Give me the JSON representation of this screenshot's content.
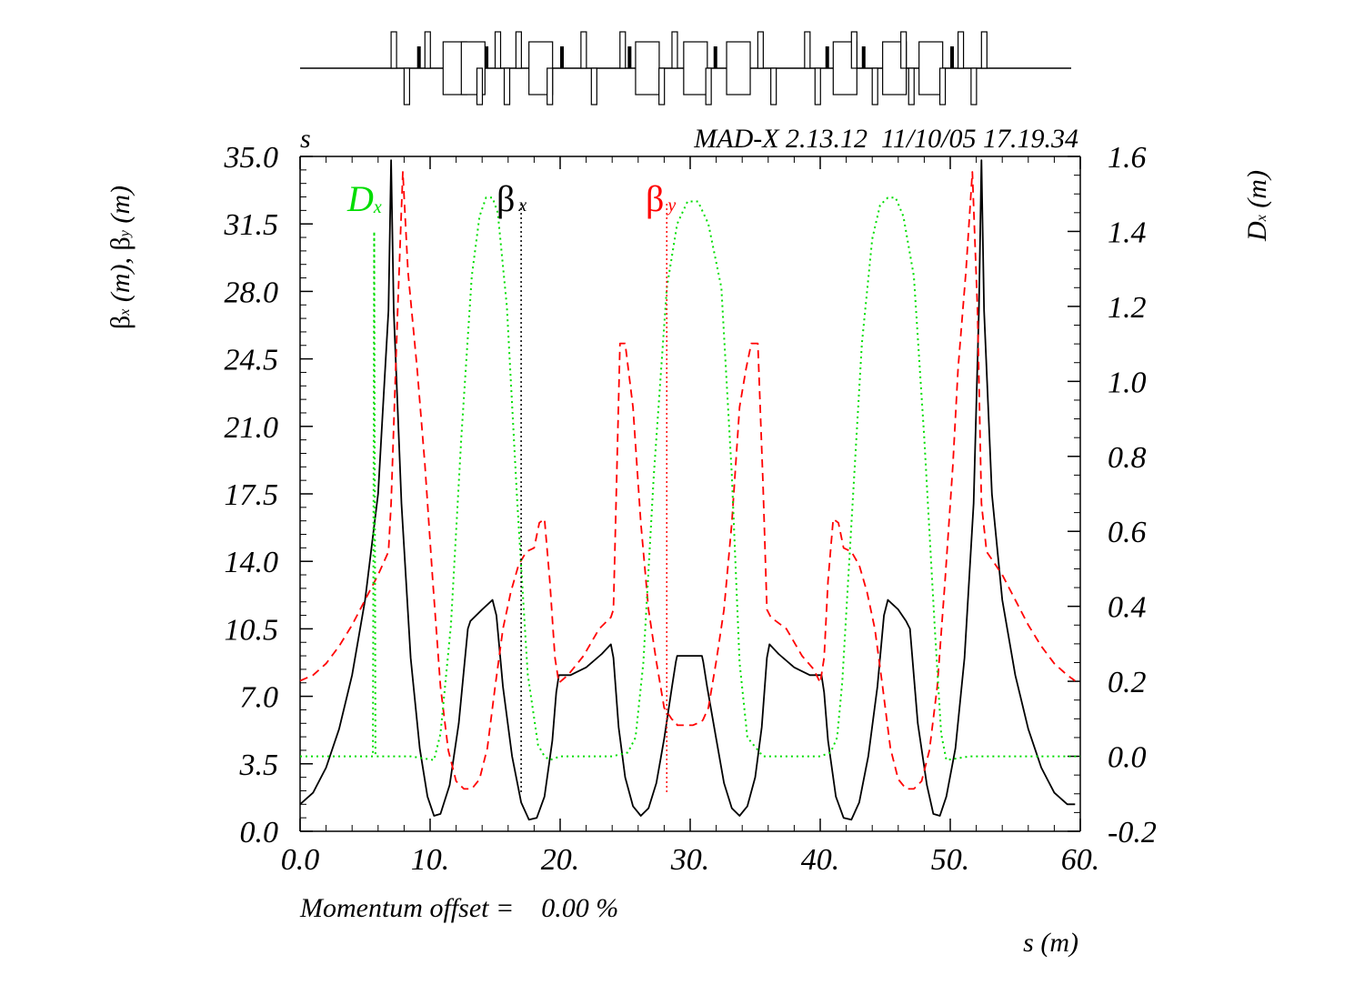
{
  "header": {
    "corner_label": "s",
    "program_stamp": "MAD-X 2.13.12  11/10/05 17.19.34"
  },
  "footer": {
    "momentum_offset": "Momentum offset =    0.00 %"
  },
  "axes": {
    "xlabel": "s (m)",
    "ylabel_left": {
      "b1": "β",
      "s1": "x",
      "m1": " (m), ",
      "b2": "β",
      "s2": "y",
      "m2": " (m)"
    },
    "ylabel_right": {
      "b": "D",
      "s": "x",
      "m": " (m)"
    },
    "x_ticks": [
      "0.0",
      "10.",
      "20.",
      "30.",
      "40.",
      "50.",
      "60."
    ],
    "y_left_ticks": [
      "0.0",
      "3.5",
      "7.0",
      "10.5",
      "14.0",
      "17.5",
      "21.0",
      "24.5",
      "28.0",
      "31.5",
      "35.0"
    ],
    "y_right_ticks": [
      "-0.2",
      "0.0",
      "0.2",
      "0.4",
      "0.6",
      "0.8",
      "1.0",
      "1.2",
      "1.4",
      "1.6"
    ]
  },
  "legend": {
    "dx": {
      "main": "D",
      "sub": "x",
      "color": "#00dd00"
    },
    "bx": {
      "main": "β",
      "sub": "x",
      "color": "#000000"
    },
    "by": {
      "main": "β",
      "sub": "y",
      "color": "#ff0000"
    }
  },
  "chart_data": {
    "type": "line",
    "xlim": [
      0,
      60
    ],
    "ylim_left": [
      0,
      35
    ],
    "ylim_right": [
      -0.2,
      1.6
    ],
    "grid": false,
    "legend_placement": "top, inside plot",
    "series": [
      {
        "name": "βx",
        "axis": "left",
        "color": "#000000",
        "style": "solid",
        "x": [
          0,
          1,
          2,
          3,
          4,
          5,
          6,
          6.8,
          7.0,
          7.2,
          7.8,
          8.5,
          9.2,
          9.8,
          10.3,
          10.8,
          11.5,
          12.2,
          12.9,
          13.1,
          14.0,
          14.8,
          15.1,
          15.6,
          16.3,
          17.0,
          17.6,
          18.2,
          18.8,
          19.4,
          19.7,
          19.9,
          20.8,
          22.0,
          23.2,
          23.9,
          24.1,
          24.5,
          25.0,
          25.6,
          26.2,
          26.8,
          27.4,
          28.0,
          28.6,
          28.9,
          29.0,
          30.2,
          30.9,
          31.0,
          31.3,
          32.0,
          32.6,
          33.2,
          33.8,
          34.4,
          35.0,
          35.5,
          35.9,
          36.1,
          36.8,
          38.0,
          39.2,
          40.1,
          40.3,
          40.6,
          41.2,
          41.8,
          42.4,
          43.0,
          43.7,
          44.4,
          44.9,
          45.2,
          46.0,
          46.6,
          46.9,
          47.5,
          48.2,
          48.7,
          49.2,
          49.7,
          50.4,
          51.1,
          51.8,
          52.2,
          52.4,
          52.6,
          53.2,
          54.0,
          55.0,
          56.0,
          57.0,
          58.0,
          59.0,
          59.6
        ],
        "values": [
          1.4,
          2.0,
          3.3,
          5.3,
          8.1,
          12.0,
          17.5,
          27.0,
          34.8,
          27.0,
          17.0,
          9.0,
          4.3,
          1.8,
          0.8,
          0.9,
          2.4,
          5.6,
          10.5,
          10.9,
          11.5,
          12.0,
          11.2,
          7.5,
          3.9,
          1.5,
          0.6,
          0.7,
          1.8,
          4.7,
          7.2,
          8.1,
          8.1,
          8.5,
          9.2,
          9.7,
          9.0,
          5.4,
          2.8,
          1.3,
          0.8,
          1.2,
          2.5,
          4.8,
          7.5,
          8.8,
          9.1,
          9.1,
          9.1,
          8.8,
          7.5,
          4.8,
          2.5,
          1.2,
          0.8,
          1.3,
          2.8,
          5.4,
          9.0,
          9.7,
          9.2,
          8.5,
          8.1,
          8.1,
          7.2,
          4.7,
          1.8,
          0.7,
          0.6,
          1.5,
          3.9,
          7.5,
          11.2,
          12.0,
          11.5,
          10.9,
          10.5,
          5.6,
          2.4,
          0.9,
          0.8,
          1.8,
          4.3,
          9.0,
          17.0,
          27.0,
          34.8,
          27.0,
          17.5,
          12.0,
          8.1,
          5.3,
          3.3,
          2.0,
          1.4,
          1.4
        ]
      },
      {
        "name": "βy",
        "axis": "left",
        "color": "#ff0000",
        "style": "dashed",
        "x": [
          0,
          1,
          2,
          3,
          4,
          5,
          6,
          6.8,
          7.0,
          7.5,
          7.9,
          8.3,
          9.0,
          9.6,
          10.2,
          10.8,
          11.4,
          12.0,
          12.6,
          13.2,
          13.8,
          14.4,
          15.0,
          15.6,
          16.2,
          16.8,
          17.4,
          18.0,
          18.4,
          18.8,
          19.2,
          19.6,
          19.9,
          20.6,
          21.8,
          23.0,
          23.9,
          24.1,
          24.6,
          25.0,
          25.6,
          26.2,
          26.8,
          27.4,
          28.0,
          28.6,
          28.9,
          29.0,
          30.2,
          30.9,
          31.0,
          31.4,
          32.0,
          32.6,
          33.2,
          33.8,
          34.3,
          34.7,
          35.2,
          35.6,
          35.9,
          36.2,
          37.4,
          38.6,
          39.5,
          40.0,
          40.3,
          40.6,
          41.0,
          41.4,
          41.8,
          42.4,
          43.0,
          43.6,
          44.2,
          44.8,
          45.4,
          46.0,
          46.6,
          47.2,
          47.8,
          48.4,
          49.0,
          49.6,
          50.2,
          50.6,
          51.2,
          51.7,
          52.1,
          52.4,
          52.8,
          54.0,
          55.0,
          56.0,
          57.0,
          58.0,
          59.0,
          59.6
        ],
        "values": [
          7.8,
          8.1,
          8.7,
          9.6,
          10.7,
          12.0,
          13.3,
          14.5,
          17.0,
          27.0,
          34.2,
          29.0,
          24.0,
          19.0,
          13.0,
          7.5,
          4.2,
          2.6,
          2.2,
          2.2,
          2.7,
          4.3,
          7.5,
          10.5,
          12.4,
          13.8,
          14.5,
          14.7,
          16.0,
          16.2,
          13.0,
          9.0,
          7.7,
          8.1,
          9.1,
          10.5,
          11.1,
          11.5,
          25.3,
          25.3,
          22.0,
          16.0,
          11.5,
          8.8,
          6.4,
          5.8,
          5.7,
          5.5,
          5.5,
          5.7,
          5.8,
          6.4,
          8.8,
          11.5,
          16.0,
          22.0,
          24.0,
          25.3,
          25.3,
          18.0,
          11.5,
          11.1,
          10.5,
          9.1,
          8.4,
          7.7,
          9.0,
          13.0,
          16.2,
          16.0,
          14.7,
          14.5,
          13.8,
          12.4,
          10.5,
          7.5,
          4.3,
          2.7,
          2.2,
          2.2,
          2.6,
          4.2,
          7.5,
          13.0,
          19.0,
          24.0,
          29.0,
          34.2,
          27.0,
          17.0,
          14.5,
          13.3,
          12.0,
          10.7,
          9.6,
          8.7,
          8.1,
          7.8
        ]
      },
      {
        "name": "Dx",
        "axis": "right",
        "color": "#00dd00",
        "style": "dotted",
        "x": [
          0,
          5.0,
          5.6,
          5.7,
          5.8,
          6.2,
          6.6,
          7.0,
          8.5,
          10.3,
          10.8,
          11.6,
          12.4,
          13.2,
          13.8,
          14.3,
          14.8,
          15.2,
          15.9,
          16.7,
          17.5,
          18.3,
          18.8,
          19.2,
          20.0,
          24.0,
          25.2,
          25.8,
          26.4,
          27.2,
          28.2,
          29.0,
          29.8,
          30.6,
          31.4,
          32.4,
          33.2,
          33.8,
          34.4,
          35.6,
          39.0,
          40.0,
          40.8,
          41.3,
          41.7,
          42.4,
          43.2,
          44.0,
          44.6,
          45.2,
          45.8,
          46.4,
          47.2,
          48.0,
          48.8,
          49.3,
          49.7,
          51.5,
          55.0,
          60.0
        ],
        "values": [
          0.0,
          0.0,
          0.0,
          1.4,
          0.0,
          0.0,
          0.0,
          0.0,
          0.0,
          -0.01,
          0.06,
          0.35,
          0.85,
          1.28,
          1.44,
          1.49,
          1.49,
          1.45,
          1.2,
          0.68,
          0.22,
          0.03,
          0.0,
          -0.01,
          0.0,
          0.0,
          0.01,
          0.05,
          0.25,
          0.75,
          1.25,
          1.42,
          1.48,
          1.48,
          1.42,
          1.25,
          0.75,
          0.25,
          0.05,
          0.0,
          0.0,
          0.0,
          0.01,
          0.05,
          0.2,
          0.62,
          1.1,
          1.38,
          1.47,
          1.49,
          1.49,
          1.44,
          1.28,
          0.85,
          0.35,
          0.06,
          -0.01,
          0.0,
          0.0,
          0.0
        ]
      }
    ],
    "markers": [
      {
        "x": 17.0,
        "color": "#000000",
        "label": "βx marker"
      },
      {
        "x": 28.2,
        "color": "#ff0000",
        "label": "βy marker"
      }
    ]
  },
  "lattice": {
    "elements": [
      {
        "s": 7.0,
        "type": "quad-up"
      },
      {
        "s": 8.0,
        "type": "quad-down"
      },
      {
        "s": 9.0,
        "type": "sext"
      },
      {
        "s": 9.6,
        "type": "quad-up"
      },
      {
        "s": 11.0,
        "type": "dipole"
      },
      {
        "s": 12.4,
        "type": "dipole"
      },
      {
        "s": 13.6,
        "type": "quad-down"
      },
      {
        "s": 14.2,
        "type": "sext"
      },
      {
        "s": 15.0,
        "type": "quad-up"
      },
      {
        "s": 15.7,
        "type": "quad-down"
      },
      {
        "s": 16.6,
        "type": "quad-up"
      },
      {
        "s": 17.6,
        "type": "dipole"
      },
      {
        "s": 19.0,
        "type": "quad-down"
      },
      {
        "s": 20.0,
        "type": "sext"
      },
      {
        "s": 21.6,
        "type": "quad-up"
      },
      {
        "s": 22.4,
        "type": "quad-down"
      },
      {
        "s": 24.6,
        "type": "quad-up"
      },
      {
        "s": 25.2,
        "type": "sext"
      },
      {
        "s": 25.8,
        "type": "dipole"
      },
      {
        "s": 27.6,
        "type": "quad-down"
      },
      {
        "s": 28.6,
        "type": "quad-up"
      },
      {
        "s": 29.5,
        "type": "dipole"
      },
      {
        "s": 31.2,
        "type": "quad-down"
      },
      {
        "s": 31.8,
        "type": "sext"
      },
      {
        "s": 32.8,
        "type": "dipole"
      },
      {
        "s": 35.2,
        "type": "quad-up"
      },
      {
        "s": 36.2,
        "type": "quad-down"
      },
      {
        "s": 38.8,
        "type": "quad-up"
      },
      {
        "s": 39.6,
        "type": "quad-down"
      },
      {
        "s": 40.4,
        "type": "sext"
      },
      {
        "s": 41.0,
        "type": "dipole"
      },
      {
        "s": 42.4,
        "type": "quad-up"
      },
      {
        "s": 43.2,
        "type": "sext"
      },
      {
        "s": 44.0,
        "type": "quad-down"
      },
      {
        "s": 44.8,
        "type": "dipole"
      },
      {
        "s": 46.2,
        "type": "quad-up"
      },
      {
        "s": 46.8,
        "type": "quad-down"
      },
      {
        "s": 47.6,
        "type": "dipole"
      },
      {
        "s": 49.2,
        "type": "quad-down"
      },
      {
        "s": 50.0,
        "type": "sext"
      },
      {
        "s": 50.6,
        "type": "quad-up"
      },
      {
        "s": 51.6,
        "type": "quad-down"
      },
      {
        "s": 52.4,
        "type": "quad-up"
      }
    ]
  }
}
